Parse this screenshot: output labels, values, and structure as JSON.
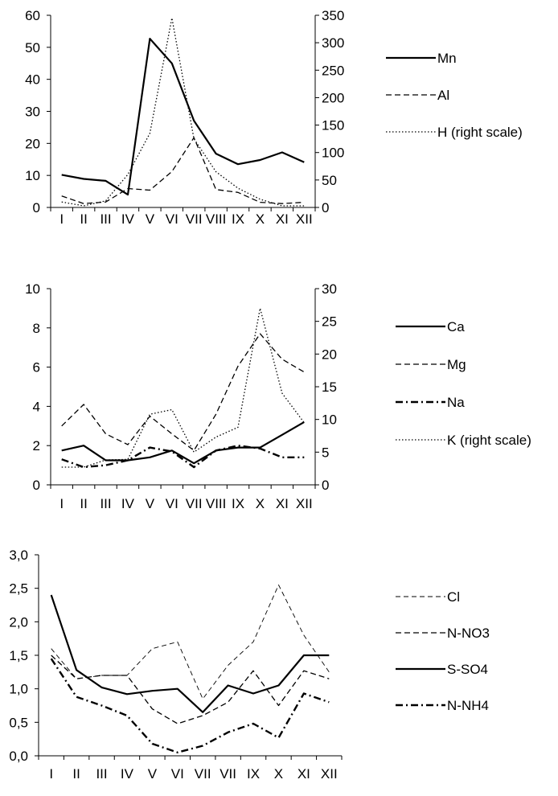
{
  "chart_data": [
    {
      "type": "line",
      "categories": [
        "I",
        "II",
        "III",
        "IV",
        "V",
        "VI",
        "VII",
        "VIII",
        "IX",
        "X",
        "XI",
        "XII"
      ],
      "y_left": {
        "ylim": [
          0,
          60
        ],
        "ticks": [
          0,
          10,
          20,
          30,
          40,
          50,
          60
        ],
        "tick_labels": [
          "0",
          "10",
          "20",
          "30",
          "40",
          "50",
          "60"
        ]
      },
      "y_right": {
        "ylim": [
          0,
          350
        ],
        "ticks": [
          0,
          50,
          100,
          150,
          200,
          250,
          300,
          350
        ],
        "tick_labels": [
          "0",
          "50",
          "100",
          "150",
          "200",
          "250",
          "300",
          "350"
        ]
      },
      "series": [
        {
          "name": "Mn",
          "axis": "left",
          "style": "solid",
          "values": [
            10.2,
            8.9,
            8.3,
            4.0,
            52.7,
            45.0,
            27.1,
            16.8,
            13.5,
            14.8,
            17.2,
            14.1
          ]
        },
        {
          "name": "Al",
          "axis": "left",
          "style": "dashed",
          "values": [
            3.6,
            1.2,
            1.7,
            5.9,
            5.4,
            11.2,
            21.8,
            5.6,
            4.7,
            1.6,
            1.2,
            1.6
          ]
        },
        {
          "name": "H (right scale)",
          "axis": "right",
          "style": "dotted",
          "values": [
            10,
            3,
            12,
            60,
            135,
            345,
            125,
            65,
            35,
            15,
            3,
            3
          ]
        }
      ]
    },
    {
      "type": "line",
      "categories": [
        "I",
        "II",
        "III",
        "IV",
        "V",
        "VI",
        "VII",
        "VIII",
        "IX",
        "X",
        "XI",
        "XII"
      ],
      "y_left": {
        "ylim": [
          0,
          10
        ],
        "ticks": [
          0,
          2,
          4,
          6,
          8,
          10
        ],
        "tick_labels": [
          "0",
          "2",
          "4",
          "6",
          "8",
          "10"
        ]
      },
      "y_right": {
        "ylim": [
          0,
          30
        ],
        "ticks": [
          0,
          5,
          10,
          15,
          20,
          25,
          30
        ],
        "tick_labels": [
          "0",
          "5",
          "10",
          "15",
          "20",
          "25",
          "30"
        ]
      },
      "series": [
        {
          "name": "Ca",
          "axis": "left",
          "style": "solid",
          "values": [
            1.75,
            2.0,
            1.25,
            1.25,
            1.4,
            1.75,
            1.1,
            1.75,
            1.9,
            1.9,
            2.55,
            3.2
          ]
        },
        {
          "name": "Mg",
          "axis": "left",
          "style": "dashed",
          "values": [
            3.0,
            4.1,
            2.6,
            2.05,
            3.5,
            2.6,
            1.75,
            3.6,
            6.05,
            7.7,
            6.4,
            5.75
          ]
        },
        {
          "name": "Na",
          "axis": "left",
          "style": "dashdot",
          "values": [
            1.3,
            0.9,
            1.0,
            1.25,
            1.9,
            1.7,
            0.9,
            1.75,
            2.0,
            1.85,
            1.4,
            1.4
          ]
        },
        {
          "name": "K (right scale)",
          "axis": "right",
          "style": "dotted",
          "values": [
            2.7,
            2.7,
            3.8,
            3.9,
            10.8,
            11.5,
            5.0,
            7.3,
            8.8,
            27.0,
            14.0,
            9.5
          ]
        }
      ]
    },
    {
      "type": "line",
      "categories": [
        "I",
        "II",
        "III",
        "IV",
        "V",
        "VI",
        "VII",
        "VII",
        "IX",
        "X",
        "XI",
        "XII"
      ],
      "y_left": {
        "ylim": [
          0,
          3.0
        ],
        "ticks": [
          0,
          0.5,
          1.0,
          1.5,
          2.0,
          2.5,
          3.0
        ],
        "tick_labels": [
          "0,0",
          "0,5",
          "1,0",
          "1,5",
          "2,0",
          "2,5",
          "3,0"
        ]
      },
      "series": [
        {
          "name": "Cl",
          "axis": "left",
          "style": "thindashed",
          "values": [
            1.6,
            1.15,
            1.2,
            1.2,
            1.6,
            1.7,
            0.85,
            1.35,
            1.7,
            2.55,
            1.8,
            1.25
          ]
        },
        {
          "name": "N-NO3",
          "axis": "left",
          "style": "dashed",
          "values": [
            1.5,
            1.15,
            1.2,
            1.2,
            0.7,
            0.48,
            0.6,
            0.8,
            1.27,
            0.75,
            1.27,
            1.15
          ]
        },
        {
          "name": "S-SO4",
          "axis": "left",
          "style": "solid",
          "values": [
            2.4,
            1.28,
            1.02,
            0.92,
            0.97,
            1.0,
            0.65,
            1.05,
            0.93,
            1.05,
            1.5,
            1.5
          ]
        },
        {
          "name": "N-NH4",
          "axis": "left",
          "style": "dashdot",
          "values": [
            1.45,
            0.88,
            0.75,
            0.6,
            0.18,
            0.05,
            0.15,
            0.35,
            0.48,
            0.27,
            0.93,
            0.8
          ]
        }
      ]
    }
  ]
}
